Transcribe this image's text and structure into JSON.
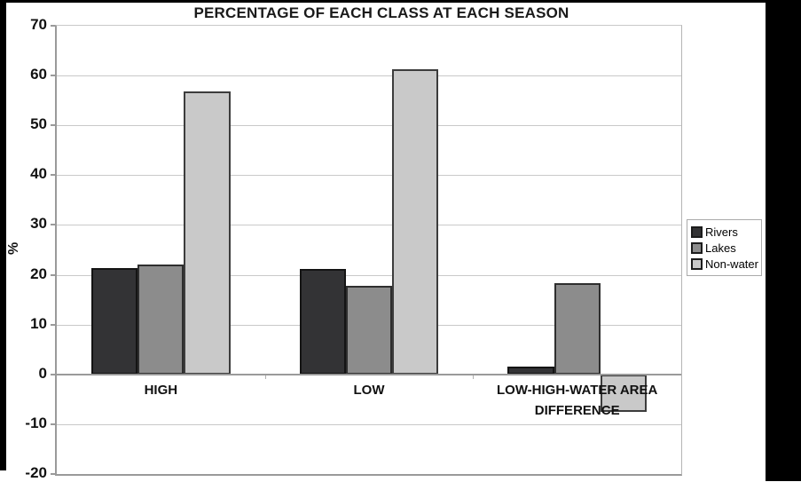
{
  "frame": {
    "color": "#000000"
  },
  "chart_data": {
    "type": "bar",
    "title": "PERCENTAGE OF EACH CLASS AT EACH SEASON",
    "xlabel": "",
    "ylabel": "%",
    "categories": [
      "HIGH",
      "LOW",
      "LOW-HIGH-WATER AREA DIFFERENCE"
    ],
    "series": [
      {
        "name": "Rivers",
        "color": "#333335",
        "border": "#141414",
        "values": [
          21.4,
          21.2,
          1.6
        ]
      },
      {
        "name": "Lakes",
        "color": "#8c8c8c",
        "border": "#2e2e2e",
        "values": [
          22.0,
          17.8,
          18.4
        ]
      },
      {
        "name": "Non-water",
        "color": "#c9c9c9",
        "border": "#3c3c3c",
        "values": [
          56.8,
          61.2,
          -7.6
        ]
      }
    ],
    "ylim": [
      -20,
      70
    ],
    "yticks": [
      70,
      60,
      50,
      40,
      30,
      20,
      10,
      0,
      -10,
      -20
    ],
    "grid": true,
    "legend_position": "right",
    "colors": {
      "gridline": "#c9c9c9",
      "axis": "#9a9a9a",
      "background": "#ffffff"
    }
  }
}
